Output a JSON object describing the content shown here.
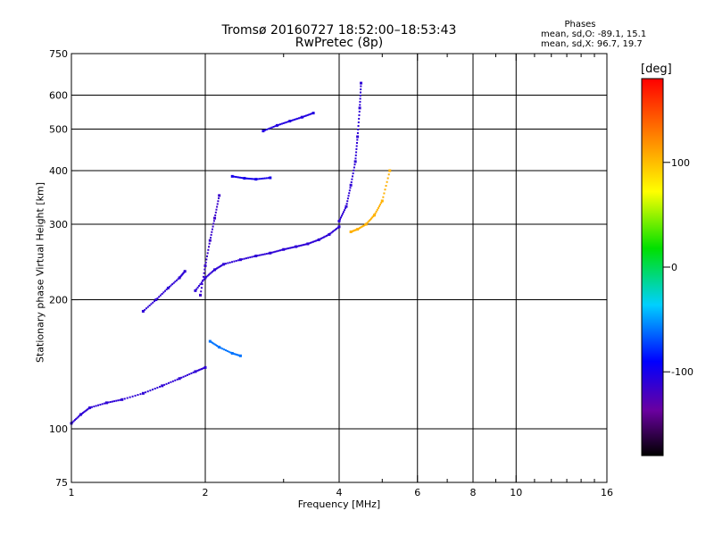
{
  "header": {
    "title_line1": "Tromsø 20160727 18:52:00–18:53:43",
    "title_line2": "RwPretec (8p)"
  },
  "phases": {
    "title": "Phases",
    "o_line": "mean, sd,O: -89.1, 15.1",
    "x_line": "mean, sd,X:  96.7, 19.7"
  },
  "colorbar": {
    "unit": "[deg]",
    "ticks": [
      100,
      0,
      -100
    ],
    "range": [
      -180,
      180
    ]
  },
  "chart_data": {
    "type": "scatter",
    "title": "Tromsø 20160727 18:52:00–18:53:43",
    "subtitle": "RwPretec (8p)",
    "xlabel": "Frequency [MHz]",
    "ylabel": "Stationary phase Virtual Height [km]",
    "xscale": "log",
    "yscale": "log",
    "xlim": [
      1,
      16
    ],
    "ylim": [
      75,
      750
    ],
    "xticks": [
      1,
      2,
      4,
      6,
      8,
      10,
      16
    ],
    "yticks": [
      75,
      100,
      200,
      300,
      400,
      500,
      600,
      750
    ],
    "grid": true,
    "color_by": "phase [deg]",
    "series": [
      {
        "traces": [
          {
            "x": [
              1.0,
              1.05,
              1.1,
              1.2,
              1.3,
              1.45,
              1.6,
              1.75,
              1.9,
              2.0
            ],
            "y": [
              103,
              108,
              112,
              115,
              117,
              121,
              126,
              131,
              136,
              139
            ],
            "phase": -110
          },
          {
            "x": [
              1.45,
              1.55,
              1.65,
              1.75,
              1.8
            ],
            "y": [
              188,
              200,
              213,
              225,
              233
            ],
            "phase": -110
          },
          {
            "x": [
              1.9,
              2.0,
              2.1,
              2.2,
              2.4,
              2.6,
              2.8,
              3.0,
              3.2,
              3.4,
              3.6,
              3.8,
              4.0
            ],
            "y": [
              210,
              225,
              235,
              242,
              248,
              253,
              257,
              262,
              266,
              270,
              276,
              284,
              296
            ],
            "phase": -110
          },
          {
            "x": [
              1.95,
              2.0,
              2.05,
              2.1,
              2.15
            ],
            "y": [
              205,
              240,
              275,
              310,
              350
            ],
            "phase": -115
          },
          {
            "x": [
              2.05,
              2.15,
              2.3,
              2.4
            ],
            "y": [
              160,
              155,
              150,
              148
            ],
            "phase": -60
          },
          {
            "x": [
              2.3,
              2.45,
              2.6,
              2.8
            ],
            "y": [
              388,
              384,
              382,
              385
            ],
            "phase": -100
          },
          {
            "x": [
              2.7,
              2.9,
              3.1,
              3.3,
              3.5
            ],
            "y": [
              495,
              510,
              522,
              533,
              545
            ],
            "phase": -105
          },
          {
            "x": [
              4.0,
              4.15,
              4.25,
              4.35,
              4.4,
              4.45,
              4.48
            ],
            "y": [
              305,
              330,
              370,
              420,
              480,
              560,
              640
            ],
            "phase": -110
          },
          {
            "x": [
              4.25,
              4.4,
              4.6,
              4.8,
              5.0,
              5.2
            ],
            "y": [
              288,
              292,
              300,
              315,
              340,
              400
            ],
            "phase": 105
          }
        ]
      }
    ]
  }
}
